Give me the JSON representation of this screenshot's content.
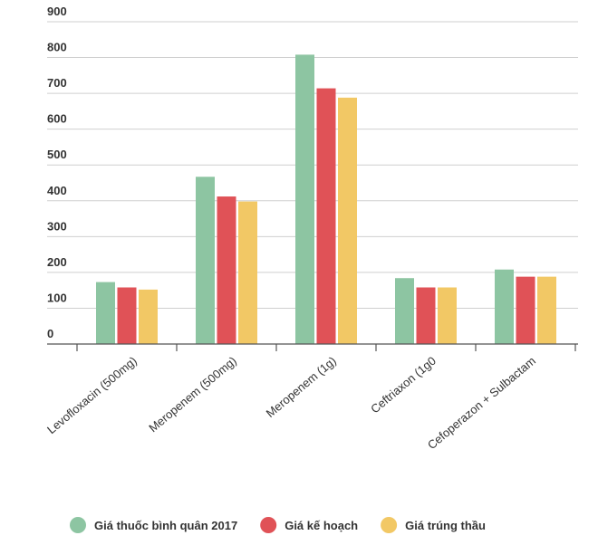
{
  "chart_data": {
    "type": "bar",
    "title": "",
    "xlabel": "",
    "ylabel": "",
    "ylim": [
      0,
      900
    ],
    "yticks": [
      "0",
      "100",
      "200",
      "300",
      "400",
      "500",
      "600",
      "700",
      "800",
      "900"
    ],
    "grid": true,
    "legend_position": "bottom",
    "categories": [
      "Levofloxacin (500mg)",
      "Meropenem (500mg)",
      "Meropenem (1g)",
      "Ceftriaxon (1g0",
      "Cefoperazon + Sulbactam"
    ],
    "series": [
      {
        "name": "Giá thuốc bình quân 2017",
        "color": "#8dc5a2",
        "values": [
          173,
          467,
          808,
          184,
          208
        ]
      },
      {
        "name": "Giá kế hoạch",
        "color": "#e05257",
        "values": [
          158,
          412,
          714,
          158,
          188
        ]
      },
      {
        "name": "Giá trúng thầu",
        "color": "#f2c865",
        "values": [
          152,
          398,
          688,
          158,
          188
        ]
      }
    ]
  }
}
